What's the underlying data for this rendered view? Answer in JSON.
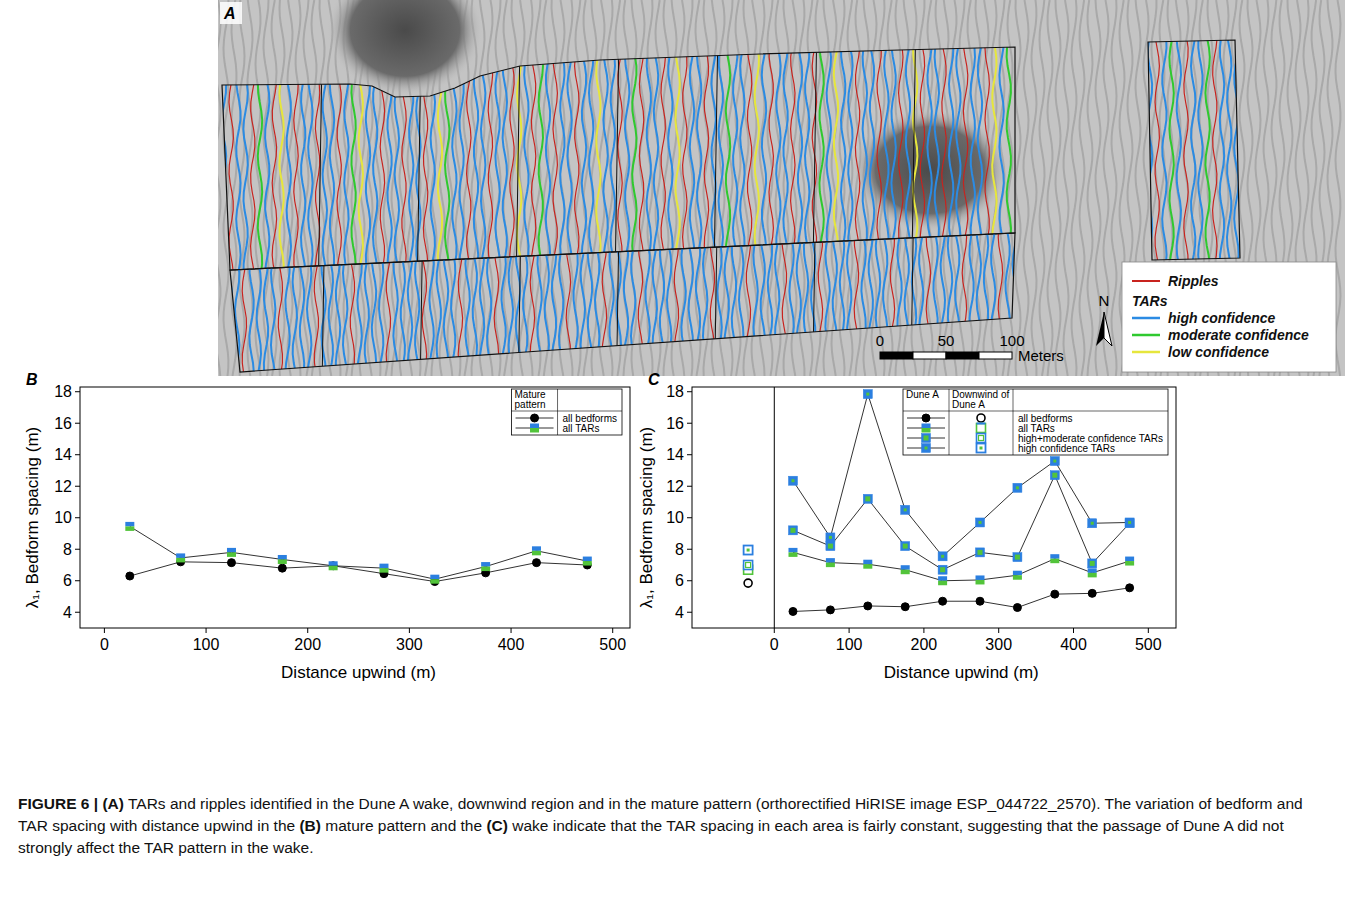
{
  "image_panel": {
    "panel_label": "A",
    "legend": {
      "ripples": "Ripples",
      "ripples_color": "#c8231e",
      "tars_title": "TARs",
      "entries": [
        {
          "label": "high confidence",
          "color": "#2b8be3"
        },
        {
          "label": "moderate confidence",
          "color": "#2fc92f"
        },
        {
          "label": "low confidence",
          "color": "#e6e63c"
        }
      ]
    },
    "scale_bar": {
      "ticks": [
        0,
        50,
        100
      ],
      "unit": "Meters"
    },
    "north": "N"
  },
  "chart_data": [
    {
      "type": "line",
      "panel_label": "B",
      "xlabel": "Distance upwind (m)",
      "ylabel": "λ₁, Bedform spacing (m)",
      "x": [
        25,
        75,
        125,
        175,
        225,
        275,
        325,
        375,
        425,
        475
      ],
      "xlim": [
        -24,
        517
      ],
      "xticks": [
        0,
        100,
        200,
        300,
        400,
        500
      ],
      "ylim": [
        3,
        18.3
      ],
      "yticks": [
        4,
        6,
        8,
        10,
        12,
        14,
        16,
        18
      ],
      "legend": "top-right",
      "legend_title": "Mature pattern",
      "series": [
        {
          "name": "all bedforms",
          "color": "#000000",
          "marker": "circle",
          "values": [
            6.3,
            7.2,
            7.15,
            6.8,
            6.95,
            6.45,
            5.95,
            6.5,
            7.15,
            7.0
          ]
        },
        {
          "name": "all TARs",
          "color": "#2b7fe0",
          "marker": "square-split",
          "values": [
            9.45,
            7.45,
            7.8,
            7.35,
            6.95,
            6.8,
            6.1,
            6.9,
            7.9,
            7.25
          ]
        }
      ]
    },
    {
      "type": "line",
      "panel_label": "C",
      "xlabel": "Distance upwind (m)",
      "ylabel": "λ₁, Bedform spacing (m)",
      "x": [
        25,
        75,
        125,
        175,
        225,
        275,
        325,
        375,
        425,
        475
      ],
      "xlim": [
        -110,
        537
      ],
      "xticks": [
        0,
        100,
        200,
        300,
        400,
        500
      ],
      "ylim": [
        3,
        18.3
      ],
      "yticks": [
        4,
        6,
        8,
        10,
        12,
        14,
        16,
        18
      ],
      "legend": "top-right",
      "legend_columns": [
        "Dune A",
        "Downwind of Dune A"
      ],
      "series": [
        {
          "name": "all bedforms",
          "color": "#000000",
          "marker": "circle",
          "values": [
            4.05,
            4.15,
            4.4,
            4.35,
            4.7,
            4.7,
            4.3,
            5.15,
            5.2,
            5.55
          ],
          "downwind": {
            "x": [
              -35
            ],
            "values": [
              5.85
            ]
          }
        },
        {
          "name": "all TARs",
          "color": "#2b7fe0",
          "marker": "square-split",
          "values": [
            7.8,
            7.15,
            7.05,
            6.7,
            6.0,
            6.05,
            6.35,
            7.4,
            6.5,
            7.25
          ],
          "downwind": {
            "x": [
              -35
            ],
            "values": [
              6.7
            ]
          }
        },
        {
          "name": "high+moderate confidence TARs",
          "color": "#2b7fe0",
          "marker": "square-framed",
          "values": [
            9.2,
            8.2,
            11.2,
            8.2,
            6.7,
            7.8,
            7.5,
            12.7,
            7.1,
            9.65
          ],
          "downwind": {
            "x": [
              -35
            ],
            "values": [
              7.0
            ]
          }
        },
        {
          "name": "high confidence TARs",
          "color": "#2b7fe0",
          "marker": "square-dot",
          "values": [
            12.35,
            8.75,
            17.85,
            10.5,
            7.55,
            9.7,
            11.9,
            13.6,
            9.65,
            9.7
          ],
          "downwind": {
            "x": [
              -35
            ],
            "values": [
              7.95
            ]
          }
        }
      ]
    }
  ],
  "caption": [
    {
      "text": "FIGURE 6 | (A)",
      "bold": true
    },
    {
      "text": " TARs and ripples identified in the Dune A wake, downwind region and in the mature pattern (orthorectified HiRISE image ESP_044722_2570). The variation of bedform and TAR spacing with distance upwind in the ",
      "bold": false
    },
    {
      "text": "(B)",
      "bold": true
    },
    {
      "text": " mature pattern and the ",
      "bold": false
    },
    {
      "text": "(C)",
      "bold": true
    },
    {
      "text": " wake indicate that the TAR spacing in each area is fairly constant, suggesting that the passage of Dune A did not strongly affect the TAR pattern in the wake.",
      "bold": false
    }
  ]
}
